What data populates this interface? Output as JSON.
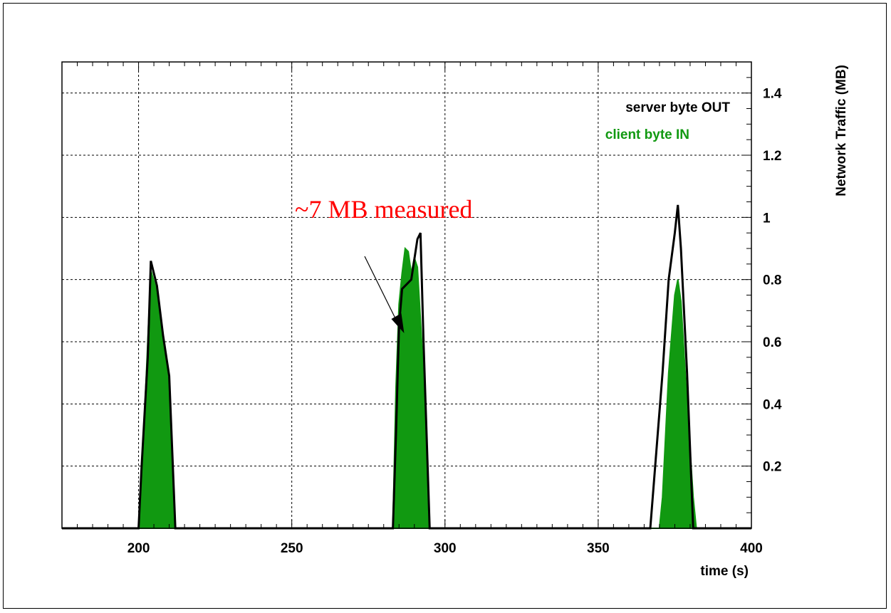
{
  "chart_data": {
    "type": "area",
    "xlabel": "time (s)",
    "ylabel": "Network Traffic (MB)",
    "xlim": [
      175,
      400
    ],
    "ylim": [
      0,
      1.5
    ],
    "x_ticks": [
      200,
      250,
      300,
      350,
      400
    ],
    "y_ticks": [
      0.2,
      0.4,
      0.6,
      0.8,
      1,
      1.2,
      1.4
    ],
    "x_tick_labels": [
      "200",
      "250",
      "300",
      "350",
      "400"
    ],
    "y_tick_labels": [
      "0.2",
      "0.4",
      "0.6",
      "0.8",
      "1",
      "1.2",
      "1.4"
    ],
    "grid": true,
    "y_axis_side": "right",
    "legend_position": "top-right",
    "series": [
      {
        "name": "server byte OUT",
        "style": "line",
        "color": "#000000",
        "points": [
          [
            175,
            0
          ],
          [
            200,
            0
          ],
          [
            201,
            0.2
          ],
          [
            203,
            0.55
          ],
          [
            204,
            0.86
          ],
          [
            206,
            0.78
          ],
          [
            208,
            0.62
          ],
          [
            210,
            0.49
          ],
          [
            212,
            0
          ],
          [
            283,
            0
          ],
          [
            284,
            0.3
          ],
          [
            285,
            0.65
          ],
          [
            286,
            0.77
          ],
          [
            287,
            0.78
          ],
          [
            289,
            0.8
          ],
          [
            291,
            0.93
          ],
          [
            292,
            0.95
          ],
          [
            293,
            0.6
          ],
          [
            295,
            0
          ],
          [
            367,
            0
          ],
          [
            369,
            0.25
          ],
          [
            371,
            0.5
          ],
          [
            373,
            0.8
          ],
          [
            375,
            0.95
          ],
          [
            376,
            1.04
          ],
          [
            377,
            0.9
          ],
          [
            379,
            0.5
          ],
          [
            381,
            0
          ],
          [
            400,
            0
          ]
        ]
      },
      {
        "name": "client   byte IN",
        "style": "area",
        "color": "#119911",
        "points": [
          [
            175,
            0
          ],
          [
            200,
            0
          ],
          [
            201,
            0.15
          ],
          [
            203,
            0.6
          ],
          [
            204,
            0.83
          ],
          [
            206,
            0.76
          ],
          [
            208,
            0.6
          ],
          [
            210,
            0.45
          ],
          [
            212,
            0
          ],
          [
            283,
            0
          ],
          [
            284,
            0.45
          ],
          [
            285,
            0.72
          ],
          [
            286,
            0.82
          ],
          [
            287,
            0.9
          ],
          [
            288,
            0.89
          ],
          [
            289,
            0.82
          ],
          [
            290,
            0.87
          ],
          [
            291,
            0.84
          ],
          [
            293,
            0.5
          ],
          [
            295,
            0
          ],
          [
            370,
            0
          ],
          [
            371,
            0.1
          ],
          [
            373,
            0.5
          ],
          [
            375,
            0.75
          ],
          [
            376,
            0.8
          ],
          [
            377,
            0.73
          ],
          [
            379,
            0.4
          ],
          [
            381,
            0.1
          ],
          [
            382,
            0
          ],
          [
            400,
            0
          ]
        ]
      }
    ],
    "annotations": [
      {
        "text": "~7 MB measured",
        "color": "#ff0000",
        "arrow_to": [
          289,
          0.6
        ]
      }
    ]
  }
}
